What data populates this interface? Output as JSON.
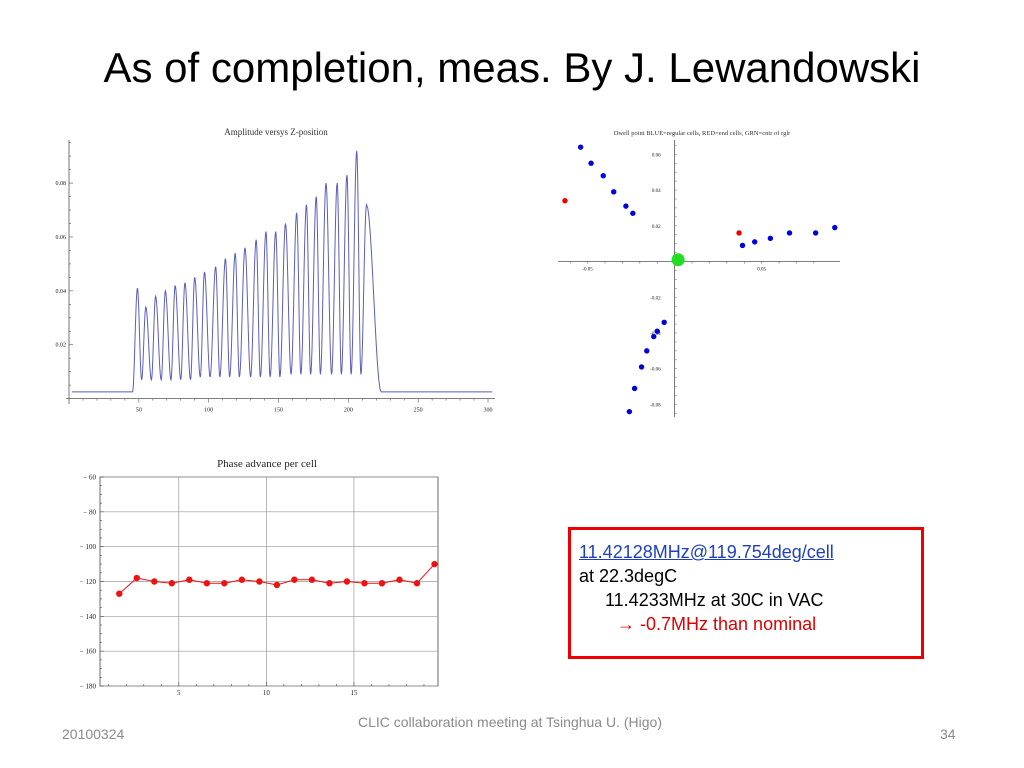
{
  "slide": {
    "title": "As of completion, meas. By J. Lewandowski",
    "footer_left": "20100324",
    "footer_center": "CLIC collaboration meeting at Tsinghua U. (Higo)",
    "footer_right": "34"
  },
  "note": {
    "line1": "11.42128MHz@119.754deg/cell",
    "line2": "at 22.3degC",
    "line3": "11.4233MHz at 30C in VAC",
    "arrow": "→",
    "line4": "-0.7MHz than nominal"
  },
  "colors": {
    "box_border": "#ee0000",
    "trace": "#5b5fb8",
    "phase_points": "#ee1111",
    "blue_points": "#0000dd",
    "red_points": "#ee0000",
    "green_point": "#22dd22"
  },
  "chart_data": [
    {
      "type": "line",
      "title": "Amplitude versys Z-position",
      "xlim": [
        0,
        305
      ],
      "ylim": [
        -0.002,
        0.096
      ],
      "x_ticks": [
        "50",
        "100",
        "150",
        "200",
        "250",
        "300"
      ],
      "y_ticks": [
        "0.02",
        "0.04",
        "0.06",
        "0.08"
      ],
      "baseline": 0.0025,
      "start_x": 47,
      "end_x": 222,
      "ramp": 1.5,
      "x_peaks": [
        49,
        55,
        62,
        69,
        76,
        83,
        90,
        97,
        105,
        112,
        119,
        126,
        134,
        141,
        148,
        155,
        163,
        170,
        177,
        184,
        192,
        199,
        206,
        213
      ],
      "y_peaks": [
        0.041,
        0.034,
        0.038,
        0.04,
        0.042,
        0.043,
        0.045,
        0.047,
        0.049,
        0.052,
        0.054,
        0.056,
        0.059,
        0.062,
        0.062,
        0.065,
        0.069,
        0.072,
        0.075,
        0.08,
        0.08,
        0.083,
        0.092,
        0.072
      ],
      "x_valleys": [
        52,
        59,
        66,
        73,
        80,
        87,
        94,
        101,
        108,
        115,
        122,
        130,
        137,
        144,
        151,
        159,
        166,
        173,
        180,
        188,
        195,
        202,
        209
      ],
      "y_valleys": [
        0.007,
        0.007,
        0.007,
        0.007,
        0.007,
        0.007,
        0.008,
        0.008,
        0.008,
        0.008,
        0.008,
        0.008,
        0.008,
        0.008,
        0.008,
        0.009,
        0.009,
        0.009,
        0.009,
        0.009,
        0.009,
        0.009,
        0.009
      ]
    },
    {
      "type": "scatter",
      "title": "Dwell point BLUE=regular cells, RED=end cells, GRN=cntr of rglr",
      "xlim": [
        -0.067,
        0.095
      ],
      "ylim": [
        -0.087,
        0.068
      ],
      "x_ticks": [
        "-0.05",
        "0.05"
      ],
      "x_tick_values": [
        -0.05,
        0.05
      ],
      "y_ticks": [
        "0.06",
        "0.04",
        "0.02",
        "-0.02",
        "-0.04",
        "-0.06",
        "-0.08"
      ],
      "y_tick_values": [
        0.06,
        0.04,
        0.02,
        -0.02,
        -0.04,
        -0.06,
        -0.08
      ],
      "series": [
        {
          "role": "regular",
          "x": [
            -0.054,
            -0.048,
            -0.041,
            -0.035,
            -0.028,
            -0.024,
            0.039,
            0.046,
            0.055,
            0.066,
            0.081,
            0.092,
            -0.026,
            -0.023,
            -0.019,
            -0.016,
            -0.012,
            -0.01,
            -0.006
          ],
          "y": [
            0.064,
            0.055,
            0.048,
            0.039,
            0.031,
            0.027,
            0.009,
            0.011,
            0.013,
            0.016,
            0.016,
            0.019,
            -0.084,
            -0.071,
            -0.059,
            -0.05,
            -0.042,
            -0.039,
            -0.034
          ]
        },
        {
          "role": "end",
          "x": [
            -0.063,
            0.037
          ],
          "y": [
            0.034,
            0.016
          ]
        },
        {
          "role": "center",
          "x": [
            0.002
          ],
          "y": [
            0.001
          ]
        }
      ]
    },
    {
      "type": "line",
      "title": "Phase advance per cell",
      "xlim": [
        0.5,
        19.8
      ],
      "ylim": [
        -180,
        -60
      ],
      "x_ticks": [
        "5",
        "10",
        "15"
      ],
      "x_tick_values": [
        5,
        10,
        15
      ],
      "y_ticks": [
        "-60",
        "-80",
        "-100",
        "-120",
        "-140",
        "-160",
        "-180"
      ],
      "y_tick_values": [
        -60,
        -80,
        -100,
        -120,
        -140,
        -160,
        -180
      ],
      "grid": true,
      "x": [
        1.6,
        2.6,
        3.6,
        4.6,
        5.6,
        6.6,
        7.6,
        8.6,
        9.6,
        10.6,
        11.6,
        12.6,
        13.6,
        14.6,
        15.6,
        16.6,
        17.6,
        18.6,
        19.6
      ],
      "y": [
        -127,
        -118,
        -120,
        -121,
        -119,
        -121,
        -121,
        -119,
        -120,
        -122,
        -119,
        -119,
        -121,
        -120,
        -121,
        -121,
        -119,
        -121,
        -110
      ]
    }
  ]
}
